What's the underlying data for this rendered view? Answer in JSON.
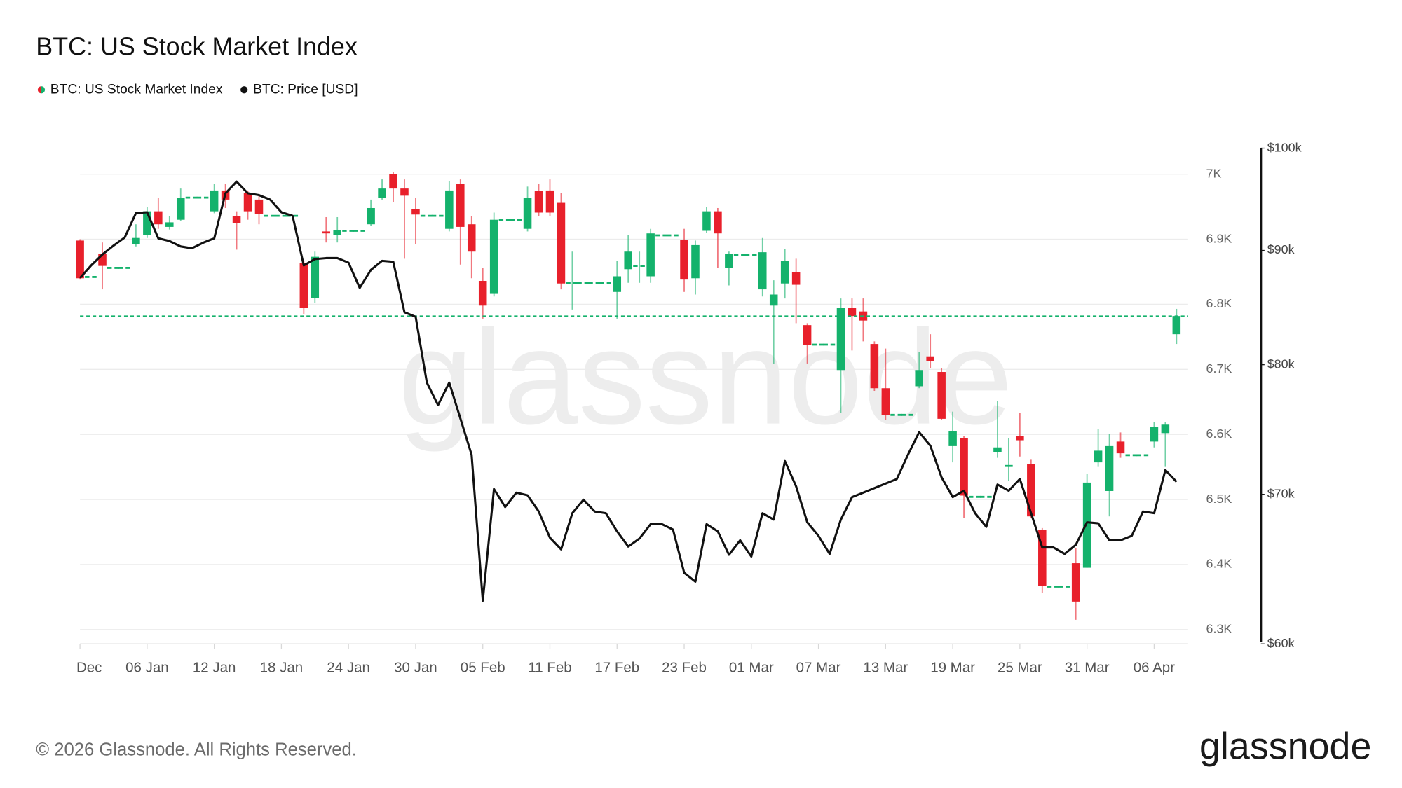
{
  "chart_data": {
    "type": "candlestick",
    "title": "BTC: US Stock Market Index",
    "watermark": "glassnode",
    "footer": "© 2026 Glassnode. All Rights Reserved.",
    "logo": "glassnode",
    "categories": [
      "Dec",
      null,
      null,
      null,
      null,
      null,
      "06 Jan",
      null,
      null,
      null,
      null,
      null,
      "12 Jan",
      null,
      null,
      null,
      null,
      null,
      "18 Jan",
      null,
      null,
      null,
      null,
      null,
      "24 Jan",
      null,
      null,
      null,
      null,
      null,
      "30 Jan",
      null,
      null,
      null,
      null,
      null,
      "05 Feb",
      null,
      null,
      null,
      null,
      null,
      "11 Feb",
      null,
      null,
      null,
      null,
      null,
      "17 Feb",
      null,
      null,
      null,
      null,
      null,
      "23 Feb",
      null,
      null,
      null,
      null,
      null,
      "01 Mar",
      null,
      null,
      null,
      null,
      null,
      "07 Mar",
      null,
      null,
      null,
      null,
      null,
      "13 Mar",
      null,
      null,
      null,
      null,
      null,
      "19 Mar",
      null,
      null,
      null,
      null,
      null,
      "25 Mar",
      null,
      null,
      null,
      null,
      null,
      "31 Mar",
      null,
      null,
      null,
      null,
      null,
      "06 Apr",
      null,
      null
    ],
    "series": [
      {
        "name": "BTC: US Stock Market Index",
        "up_color": "#14b26c",
        "down_color": "#e8202b",
        "open": [
          6898,
          6842,
          6877,
          6856,
          6856,
          6892,
          6906,
          6943,
          6919,
          6930,
          6964,
          6964,
          6943,
          6975,
          6936,
          6971,
          6961,
          6936,
          6936,
          6936,
          6863,
          6810,
          6912,
          6906,
          6913,
          6913,
          6923,
          6964,
          7000,
          6978,
          6946,
          6936,
          6936,
          6916,
          6985,
          6923,
          6836,
          6816,
          6930,
          6930,
          6916,
          6974,
          6975,
          6956,
          6833,
          6833,
          6833,
          6833,
          6819,
          6854,
          6859,
          6843,
          6906,
          6906,
          6899,
          6840,
          6913,
          6943,
          6856,
          6876,
          6876,
          6823,
          6798,
          6832,
          6849,
          6768,
          6738,
          6738,
          6699,
          6794,
          6789,
          6739,
          6671,
          6630,
          6630,
          6674,
          6720,
          6696,
          6582,
          6594,
          6504,
          6504,
          6573,
          6550,
          6597,
          6554,
          6453,
          6366,
          6366,
          6402,
          6395,
          6557,
          6513,
          6589,
          6568,
          6568,
          6589,
          6602,
          6754
        ],
        "close": [
          6840,
          6842,
          6859,
          6856,
          6856,
          6902,
          6943,
          6923,
          6926,
          6964,
          6964,
          6964,
          6975,
          6961,
          6925,
          6943,
          6939,
          6936,
          6936,
          6936,
          6794,
          6873,
          6909,
          6914,
          6913,
          6913,
          6948,
          6978,
          6978,
          6967,
          6938,
          6936,
          6936,
          6975,
          6919,
          6881,
          6798,
          6930,
          6930,
          6930,
          6964,
          6941,
          6941,
          6832,
          6833,
          6833,
          6833,
          6833,
          6843,
          6881,
          6859,
          6909,
          6906,
          6906,
          6838,
          6891,
          6943,
          6909,
          6877,
          6876,
          6876,
          6880,
          6815,
          6867,
          6830,
          6738,
          6738,
          6738,
          6794,
          6782,
          6775,
          6671,
          6630,
          6630,
          6630,
          6699,
          6713,
          6624,
          6605,
          6506,
          6504,
          6504,
          6580,
          6553,
          6591,
          6474,
          6367,
          6366,
          6366,
          6343,
          6526,
          6575,
          6582,
          6571,
          6568,
          6568,
          6611,
          6615,
          6782
        ],
        "high": [
          6900,
          6842,
          6895,
          6856,
          6856,
          6923,
          6950,
          6964,
          6936,
          6978,
          6964,
          6964,
          6985,
          6985,
          6943,
          6975,
          6967,
          6936,
          6936,
          6936,
          6867,
          6881,
          6934,
          6934,
          6913,
          6913,
          6961,
          6992,
          7003,
          6992,
          6964,
          6936,
          6936,
          6989,
          6992,
          6936,
          6856,
          6941,
          6930,
          6930,
          6981,
          6985,
          6992,
          6971,
          6881,
          6833,
          6833,
          6833,
          6867,
          6906,
          6881,
          6916,
          6906,
          6906,
          6916,
          6898,
          6950,
          6948,
          6881,
          6876,
          6876,
          6902,
          6837,
          6885,
          6870,
          6771,
          6738,
          6738,
          6809,
          6809,
          6809,
          6743,
          6732,
          6630,
          6630,
          6727,
          6754,
          6702,
          6635,
          6598,
          6504,
          6504,
          6651,
          6594,
          6633,
          6561,
          6456,
          6366,
          6366,
          6425,
          6539,
          6608,
          6601,
          6603,
          6568,
          6568,
          6619,
          6619,
          6793
        ],
        "low": [
          6838,
          6842,
          6823,
          6856,
          6856,
          6889,
          6902,
          6916,
          6915,
          6928,
          6964,
          6964,
          6940,
          6948,
          6884,
          6930,
          6923,
          6936,
          6936,
          6936,
          6785,
          6802,
          6895,
          6895,
          6913,
          6913,
          6920,
          6961,
          6957,
          6870,
          6892,
          6936,
          6936,
          6912,
          6861,
          6840,
          6778,
          6812,
          6930,
          6930,
          6912,
          6936,
          6936,
          6823,
          6792,
          6833,
          6833,
          6833,
          6778,
          6833,
          6833,
          6833,
          6906,
          6906,
          6819,
          6815,
          6910,
          6856,
          6829,
          6876,
          6876,
          6812,
          6709,
          6809,
          6771,
          6709,
          6738,
          6738,
          6633,
          6729,
          6743,
          6667,
          6622,
          6630,
          6630,
          6671,
          6702,
          6622,
          6557,
          6471,
          6504,
          6504,
          6564,
          6529,
          6566,
          6471,
          6356,
          6366,
          6366,
          6315,
          6395,
          6550,
          6474,
          6564,
          6568,
          6568,
          6580,
          6550,
          6739
        ]
      },
      {
        "name": "BTC: Price [USD]",
        "color": "#111111",
        "axis": "y2",
        "type": "line",
        "values": [
          87480,
          88620,
          89620,
          90450,
          91210,
          93530,
          93610,
          91130,
          90870,
          90370,
          90200,
          90710,
          91130,
          95460,
          96620,
          95460,
          95280,
          94840,
          93610,
          93270,
          88620,
          89200,
          89290,
          89290,
          88870,
          86590,
          88210,
          89040,
          88950,
          84440,
          84050,
          78540,
          76740,
          78540,
          75680,
          72910,
          62730,
          70380,
          69090,
          70120,
          69930,
          68770,
          66940,
          66140,
          68650,
          69610,
          68770,
          68650,
          67380,
          66330,
          66880,
          67880,
          67880,
          67500,
          64560,
          63970,
          67880,
          67380,
          65770,
          66760,
          65650,
          68650,
          68200,
          72440,
          70580,
          68010,
          67070,
          65830,
          68200,
          69800,
          70120,
          70450,
          70780,
          71110,
          72910,
          74630,
          73590,
          71240,
          69800,
          70260,
          68650,
          67690,
          70710,
          70260,
          71110,
          68650,
          66270,
          66270,
          65830,
          66450,
          68010,
          67940,
          66760,
          66760,
          67070,
          68770,
          68650,
          71770,
          70910
        ]
      }
    ],
    "ylim": [
      6278,
      7040
    ],
    "yticks": [
      {
        "value": 6300,
        "label": "6.3K"
      },
      {
        "value": 6400,
        "label": "6.4K"
      },
      {
        "value": 6500,
        "label": "6.5K"
      },
      {
        "value": 6600,
        "label": "6.6K"
      },
      {
        "value": 6700,
        "label": "6.7K"
      },
      {
        "value": 6800,
        "label": "6.8K"
      },
      {
        "value": 6900,
        "label": "6.9K"
      },
      {
        "value": 7000,
        "label": "7K"
      }
    ],
    "y2lim": [
      60000,
      100000
    ],
    "y2scale": "log",
    "y2ticks": [
      {
        "value": 60000,
        "label": "$60k"
      },
      {
        "value": 70000,
        "label": "$70k"
      },
      {
        "value": 80000,
        "label": "$80k"
      },
      {
        "value": 90000,
        "label": "$90k"
      },
      {
        "value": 100000,
        "label": "$100k"
      }
    ],
    "grid": true,
    "legend": "top-left",
    "last_value_line": true
  }
}
